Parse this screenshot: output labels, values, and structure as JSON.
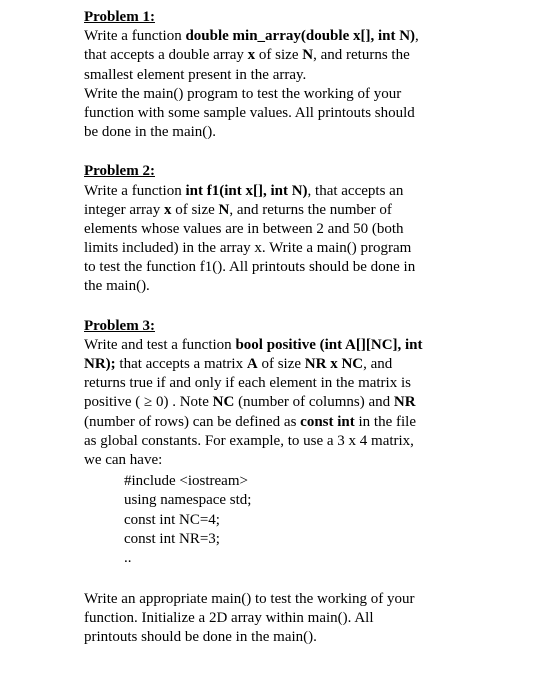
{
  "p1": {
    "heading": "Problem 1:",
    "l1a": "Write a function ",
    "l1b": "double min_array(double x[], int N)",
    "l1c": ",",
    "l2a": "that accepts a double array ",
    "l2b": "x",
    "l2c": " of size ",
    "l2d": "N",
    "l2e": ", and returns the",
    "l3": "smallest element present in the array.",
    "l4": "Write the main() program to test the working of your",
    "l5": "function with some sample values. All printouts should",
    "l6": "be done in the main()."
  },
  "p2": {
    "heading": "Problem 2:",
    "l1a": "Write a function ",
    "l1b": "int f1(int x[], int N)",
    "l1c": ", that accepts an",
    "l2a": "integer array ",
    "l2b": "x",
    "l2c": " of size ",
    "l2d": "N",
    "l2e": ", and returns the number of",
    "l3": " elements whose values are in between 2 and 50 (both",
    "l4": "limits included) in the array x.  Write a main() program",
    "l5": "to test the function f1(). All printouts should be done in",
    "l6": "the main()."
  },
  "p3": {
    "heading": "Problem 3:",
    "l1a": "Write and test a function ",
    "l1b": "bool positive (int A[][NC], int",
    "l2a": "NR);",
    "l2b": " that accepts a matrix ",
    "l2c": "A",
    "l2d": " of size ",
    "l2e": "NR x NC",
    "l2f": ", and",
    "l3": "returns true if and only if each element in the matrix is",
    "l4a": "positive ( ≥ 0) . Note ",
    "l4b": "NC",
    "l4c": " (number of columns) and ",
    "l4d": "NR",
    "l5a": "(number of rows) can be defined as   ",
    "l5b": "const int",
    "l5c": " in the file",
    "l6": "as global constants. For example, to use a 3 x 4 matrix,",
    "l7": "we can have:",
    "code1": "#include <iostream>",
    "code2": "using namespace std;",
    "code3": "const int NC=4;",
    "code4": "const int NR=3;",
    "code5": "..",
    "l8": "Write an appropriate main() to test the working of your",
    "l9": "function. Initialize a 2D array within main(). All",
    "l10": "printouts should be done in the main()."
  }
}
